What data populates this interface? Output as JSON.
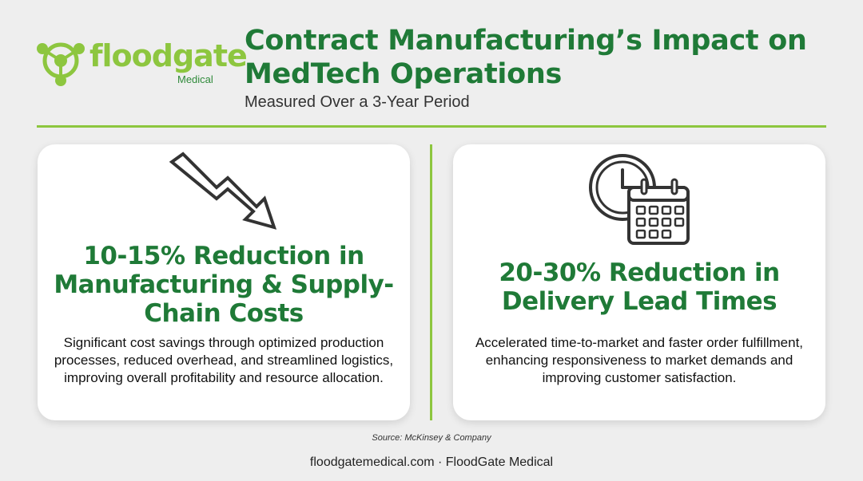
{
  "brand": {
    "wordmark": "floodgate",
    "subword": "Medical",
    "primary_color": "#1f7a37",
    "accent_color": "#8dc63f"
  },
  "header": {
    "title": "Contract Manufacturing’s Impact on MedTech Operations",
    "subtitle": "Measured Over a 3-Year Period"
  },
  "cards": [
    {
      "icon": "arrow-trending-down-icon",
      "heading": "10-15% Reduction in Manufacturing & Supply-Chain Costs",
      "body": "Significant cost savings through optimized production processes, reduced overhead, and streamlined logistics, improving overall profitability and resource allocation."
    },
    {
      "icon": "clock-calendar-icon",
      "heading": "20-30% Reduction in Delivery Lead Times",
      "body": "Accelerated time-to-market and faster order fulfillment, enhancing responsiveness to market demands and improving customer satisfaction."
    }
  ],
  "source": "Source: McKinsey & Company",
  "footer": "floodgatemedical.com · FloodGate Medical"
}
